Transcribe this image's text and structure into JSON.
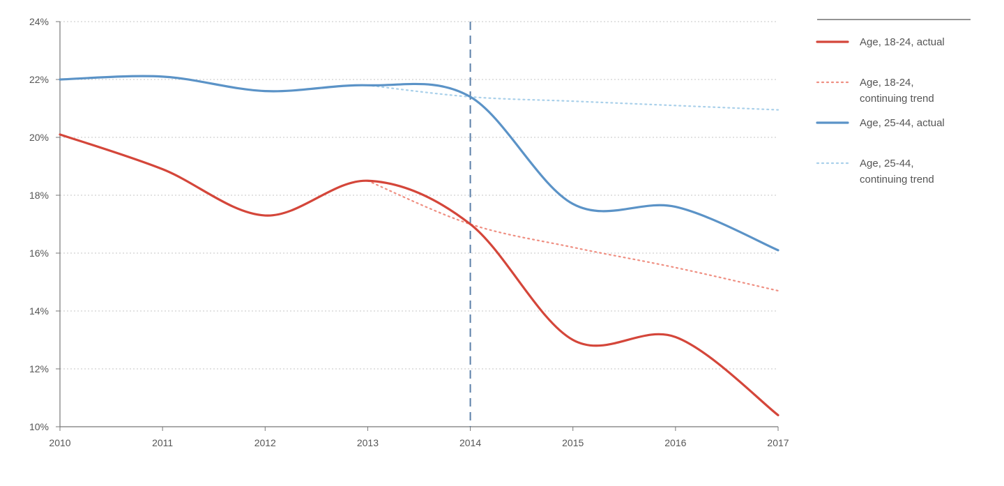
{
  "chart_data": {
    "type": "line",
    "x": [
      2010,
      2011,
      2012,
      2013,
      2014,
      2015,
      2016,
      2017
    ],
    "x_tick_labels": [
      "2010",
      "2011",
      "2012",
      "2013",
      "2014",
      "2015",
      "2016",
      "2017"
    ],
    "y_tick_labels": [
      "10%",
      "12%",
      "14%",
      "16%",
      "18%",
      "20%",
      "22%",
      "24%"
    ],
    "y_ticks": [
      10,
      12,
      14,
      16,
      18,
      20,
      22,
      24
    ],
    "ylim": [
      10,
      24
    ],
    "xlim": [
      2010,
      2017
    ],
    "grid": "horizontal dotted",
    "legend_position": "right",
    "reference_line": {
      "x": 2014,
      "style": "dashed",
      "color": "#5b7fa8"
    },
    "series": [
      {
        "name": "Age, 18-24, actual",
        "style": "solid",
        "color": "#d4463a",
        "points": [
          [
            2010,
            20.1
          ],
          [
            2011,
            18.9
          ],
          [
            2012,
            17.3
          ],
          [
            2013,
            18.5
          ],
          [
            2014,
            17.0
          ],
          [
            2015,
            13.0
          ],
          [
            2016,
            13.1
          ],
          [
            2017,
            10.4
          ]
        ]
      },
      {
        "name": "Age, 18-24, continuing trend",
        "name_lines": [
          "Age, 18-24,",
          "continuing trend"
        ],
        "style": "dotted",
        "color": "#ef8f82",
        "points": [
          [
            2013,
            18.5
          ],
          [
            2014,
            17.0
          ],
          [
            2015,
            16.2
          ],
          [
            2016,
            15.5
          ],
          [
            2017,
            14.7
          ]
        ]
      },
      {
        "name": "Age, 25-44, actual",
        "style": "solid",
        "color": "#5b93c7",
        "points": [
          [
            2010,
            22.0
          ],
          [
            2011,
            22.1
          ],
          [
            2012,
            21.6
          ],
          [
            2013,
            21.8
          ],
          [
            2014,
            21.4
          ],
          [
            2015,
            17.7
          ],
          [
            2016,
            17.6
          ],
          [
            2017,
            16.1
          ]
        ]
      },
      {
        "name": "Age, 25-44, continuing trend",
        "name_lines": [
          "Age, 25-44,",
          "continuing trend"
        ],
        "style": "dotted",
        "color": "#a9d0ea",
        "points": [
          [
            2013,
            21.8
          ],
          [
            2014,
            21.4
          ],
          [
            2015,
            21.25
          ],
          [
            2016,
            21.1
          ],
          [
            2017,
            20.95
          ]
        ]
      }
    ]
  }
}
